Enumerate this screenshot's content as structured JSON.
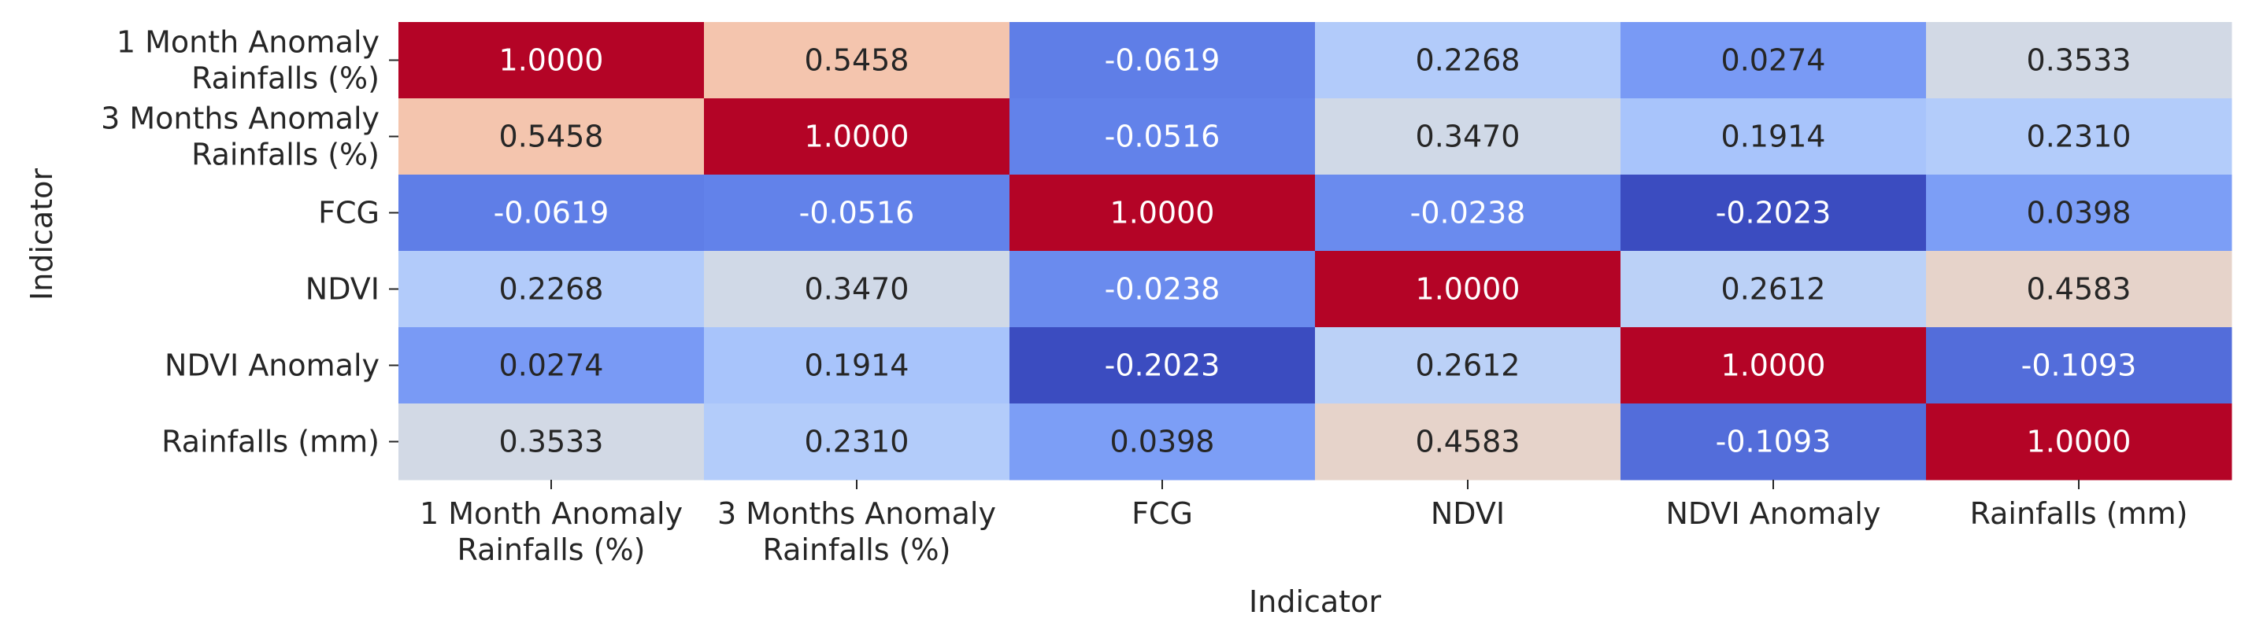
{
  "chart_data": {
    "type": "heatmap",
    "title": "",
    "xlabel": "Indicator",
    "ylabel": "Indicator",
    "colormap": "coolwarm",
    "colorbar": false,
    "legend": "none",
    "grid": false,
    "vmin": -0.2023,
    "vmax": 1.0,
    "x_categories": [
      [
        "1 Month Anomaly",
        "Rainfalls (%)"
      ],
      [
        "3 Months Anomaly",
        "Rainfalls (%)"
      ],
      [
        "FCG"
      ],
      [
        "NDVI"
      ],
      [
        "NDVI Anomaly"
      ],
      [
        "Rainfalls (mm)"
      ]
    ],
    "y_categories": [
      [
        "1 Month Anomaly",
        "Rainfalls (%)"
      ],
      [
        "3 Months Anomaly",
        "Rainfalls (%)"
      ],
      [
        "FCG"
      ],
      [
        "NDVI"
      ],
      [
        "NDVI Anomaly"
      ],
      [
        "Rainfalls (mm)"
      ]
    ],
    "values": [
      [
        1.0,
        0.5458,
        -0.0619,
        0.2268,
        0.0274,
        0.3533
      ],
      [
        0.5458,
        1.0,
        -0.0516,
        0.347,
        0.1914,
        0.231
      ],
      [
        -0.0619,
        -0.0516,
        1.0,
        -0.0238,
        -0.2023,
        0.0398
      ],
      [
        0.2268,
        0.347,
        -0.0238,
        1.0,
        0.2612,
        0.4583
      ],
      [
        0.0274,
        0.1914,
        -0.2023,
        0.2612,
        1.0,
        -0.1093
      ],
      [
        0.3533,
        0.231,
        0.0398,
        0.4583,
        -0.1093,
        1.0
      ]
    ],
    "value_format": "0.0000"
  }
}
